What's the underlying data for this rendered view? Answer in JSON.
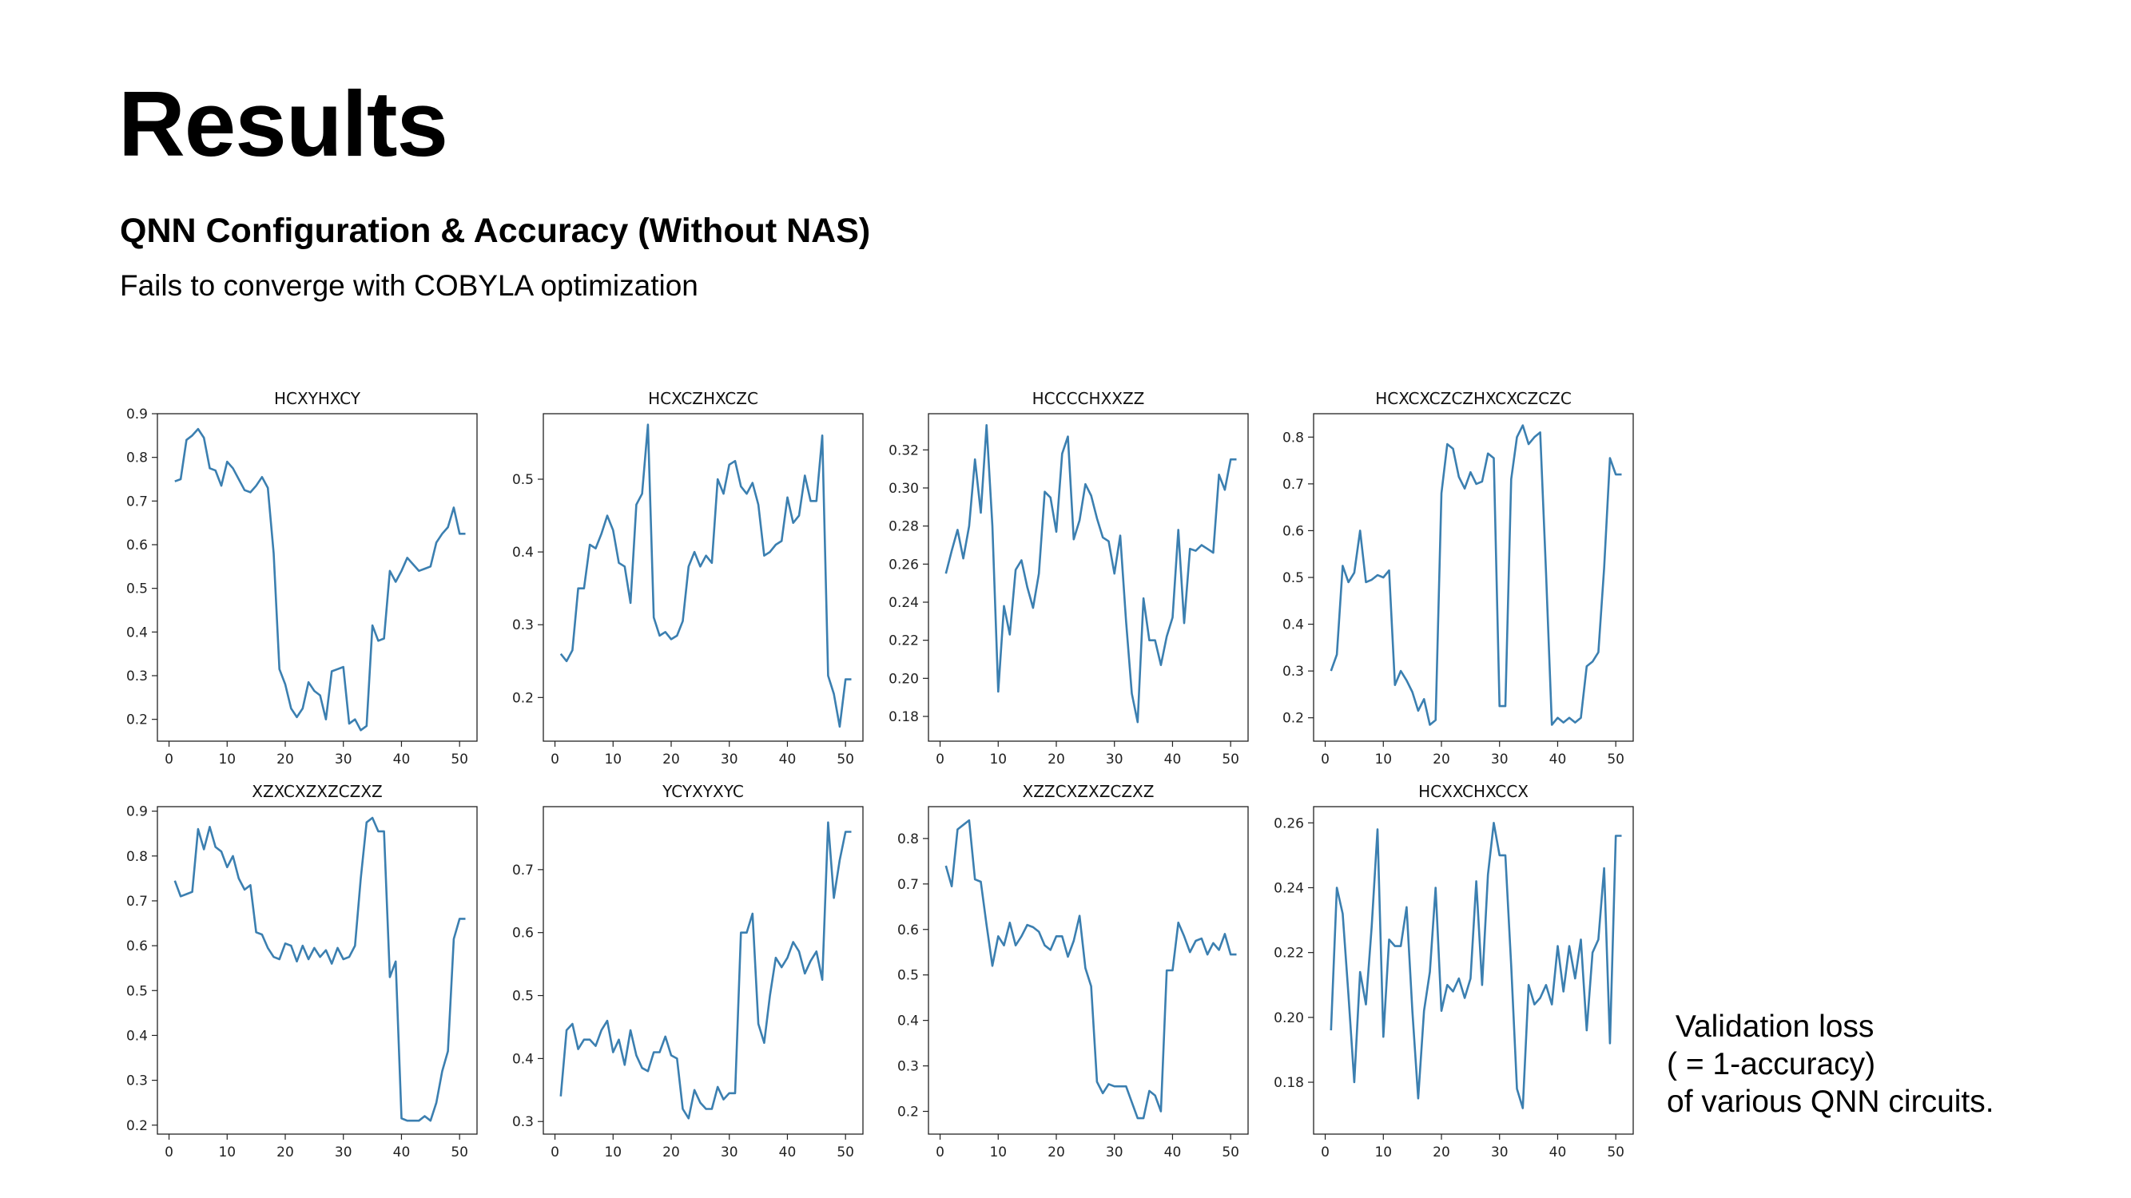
{
  "slide": {
    "title": "Results",
    "subtitle": "QNN Configuration & Accuracy (Without NAS)",
    "description": "Fails to converge with COBYLA optimization",
    "caption_lines": [
      " Validation loss",
      "( = 1-accuracy)",
      "of various QNN circuits."
    ]
  },
  "colors": {
    "line": "#3b7fb0",
    "axis": "#222222"
  },
  "chart_data": [
    {
      "type": "line",
      "title": "HCXYHXCY",
      "xlim": [
        -2,
        53
      ],
      "ylim": [
        0.15,
        0.9
      ],
      "xticks": [
        0,
        10,
        20,
        30,
        40,
        50
      ],
      "yticks": [
        0.2,
        0.3,
        0.4,
        0.5,
        0.6,
        0.7,
        0.8,
        0.9
      ],
      "ytick_labels": [
        "0.2",
        "0.3",
        "0.4",
        "0.5",
        "0.6",
        "0.7",
        "0.8",
        "0.9"
      ],
      "x": [
        1,
        2,
        3,
        4,
        5,
        6,
        7,
        8,
        9,
        10,
        11,
        12,
        13,
        14,
        15,
        16,
        17,
        18,
        19,
        20,
        21,
        22,
        23,
        24,
        25,
        26,
        27,
        28,
        29,
        30,
        31,
        32,
        33,
        34,
        35,
        36,
        37,
        38,
        39,
        40,
        41,
        42,
        43,
        44,
        45,
        46,
        47,
        48,
        49,
        50,
        51
      ],
      "y": [
        0.745,
        0.75,
        0.84,
        0.85,
        0.865,
        0.845,
        0.775,
        0.77,
        0.735,
        0.79,
        0.775,
        0.75,
        0.725,
        0.72,
        0.735,
        0.755,
        0.73,
        0.58,
        0.315,
        0.28,
        0.225,
        0.205,
        0.225,
        0.285,
        0.265,
        0.255,
        0.2,
        0.31,
        0.315,
        0.32,
        0.19,
        0.2,
        0.175,
        0.185,
        0.415,
        0.38,
        0.385,
        0.54,
        0.515,
        0.54,
        0.57,
        0.555,
        0.54,
        0.545,
        0.55,
        0.605,
        0.625,
        0.64,
        0.685,
        0.625,
        0.625
      ]
    },
    {
      "type": "line",
      "title": "HCXCZHXCZC",
      "xlim": [
        -2,
        53
      ],
      "ylim": [
        0.14,
        0.59
      ],
      "xticks": [
        0,
        10,
        20,
        30,
        40,
        50
      ],
      "yticks": [
        0.2,
        0.3,
        0.4,
        0.5
      ],
      "ytick_labels": [
        "0.2",
        "0.3",
        "0.4",
        "0.5"
      ],
      "x": [
        1,
        2,
        3,
        4,
        5,
        6,
        7,
        8,
        9,
        10,
        11,
        12,
        13,
        14,
        15,
        16,
        17,
        18,
        19,
        20,
        21,
        22,
        23,
        24,
        25,
        26,
        27,
        28,
        29,
        30,
        31,
        32,
        33,
        34,
        35,
        36,
        37,
        38,
        39,
        40,
        41,
        42,
        43,
        44,
        45,
        46,
        47,
        48,
        49,
        50,
        51
      ],
      "y": [
        0.26,
        0.25,
        0.265,
        0.35,
        0.35,
        0.41,
        0.405,
        0.425,
        0.45,
        0.43,
        0.385,
        0.38,
        0.33,
        0.465,
        0.48,
        0.575,
        0.31,
        0.285,
        0.29,
        0.28,
        0.285,
        0.305,
        0.38,
        0.4,
        0.38,
        0.395,
        0.385,
        0.5,
        0.48,
        0.52,
        0.525,
        0.49,
        0.48,
        0.495,
        0.465,
        0.395,
        0.4,
        0.41,
        0.415,
        0.475,
        0.44,
        0.45,
        0.505,
        0.47,
        0.47,
        0.56,
        0.23,
        0.205,
        0.16,
        0.225,
        0.225
      ]
    },
    {
      "type": "line",
      "title": "HCCCCHXXZZ",
      "xlim": [
        -2,
        53
      ],
      "ylim": [
        0.167,
        0.339
      ],
      "xticks": [
        0,
        10,
        20,
        30,
        40,
        50
      ],
      "yticks": [
        0.18,
        0.2,
        0.22,
        0.24,
        0.26,
        0.28,
        0.3,
        0.32
      ],
      "ytick_labels": [
        "0.18",
        "0.20",
        "0.22",
        "0.24",
        "0.26",
        "0.28",
        "0.30",
        "0.32"
      ],
      "x": [
        1,
        2,
        3,
        4,
        5,
        6,
        7,
        8,
        9,
        10,
        11,
        12,
        13,
        14,
        15,
        16,
        17,
        18,
        19,
        20,
        21,
        22,
        23,
        24,
        25,
        26,
        27,
        28,
        29,
        30,
        31,
        32,
        33,
        34,
        35,
        36,
        37,
        38,
        39,
        40,
        41,
        42,
        43,
        44,
        45,
        46,
        47,
        48,
        49,
        50,
        51
      ],
      "y": [
        0.255,
        0.267,
        0.278,
        0.263,
        0.28,
        0.315,
        0.287,
        0.333,
        0.28,
        0.193,
        0.238,
        0.223,
        0.257,
        0.262,
        0.248,
        0.237,
        0.255,
        0.298,
        0.295,
        0.277,
        0.318,
        0.327,
        0.273,
        0.283,
        0.302,
        0.296,
        0.284,
        0.274,
        0.272,
        0.255,
        0.275,
        0.23,
        0.192,
        0.177,
        0.242,
        0.22,
        0.22,
        0.207,
        0.222,
        0.232,
        0.278,
        0.229,
        0.268,
        0.267,
        0.27,
        0.268,
        0.266,
        0.307,
        0.299,
        0.315,
        0.315
      ]
    },
    {
      "type": "line",
      "title": "HCXCXCZCZHXCXCZCZC",
      "xlim": [
        -2,
        53
      ],
      "ylim": [
        0.15,
        0.85
      ],
      "xticks": [
        0,
        10,
        20,
        30,
        40,
        50
      ],
      "yticks": [
        0.2,
        0.3,
        0.4,
        0.5,
        0.6,
        0.7,
        0.8
      ],
      "ytick_labels": [
        "0.2",
        "0.3",
        "0.4",
        "0.5",
        "0.6",
        "0.7",
        "0.8"
      ],
      "x": [
        1,
        2,
        3,
        4,
        5,
        6,
        7,
        8,
        9,
        10,
        11,
        12,
        13,
        14,
        15,
        16,
        17,
        18,
        19,
        20,
        21,
        22,
        23,
        24,
        25,
        26,
        27,
        28,
        29,
        30,
        31,
        32,
        33,
        34,
        35,
        36,
        37,
        38,
        39,
        40,
        41,
        42,
        43,
        44,
        45,
        46,
        47,
        48,
        49,
        50,
        51
      ],
      "y": [
        0.3,
        0.335,
        0.525,
        0.49,
        0.51,
        0.6,
        0.49,
        0.495,
        0.505,
        0.5,
        0.515,
        0.27,
        0.3,
        0.28,
        0.255,
        0.215,
        0.24,
        0.185,
        0.195,
        0.68,
        0.785,
        0.775,
        0.715,
        0.69,
        0.725,
        0.7,
        0.705,
        0.765,
        0.755,
        0.225,
        0.225,
        0.71,
        0.8,
        0.825,
        0.785,
        0.8,
        0.81,
        0.51,
        0.185,
        0.2,
        0.19,
        0.2,
        0.19,
        0.2,
        0.31,
        0.32,
        0.34,
        0.52,
        0.755,
        0.72,
        0.72
      ]
    },
    {
      "type": "line",
      "title": "XZXCXZXZCZXZ",
      "xlim": [
        -2,
        53
      ],
      "ylim": [
        0.18,
        0.91
      ],
      "xticks": [
        0,
        10,
        20,
        30,
        40,
        50
      ],
      "yticks": [
        0.2,
        0.3,
        0.4,
        0.5,
        0.6,
        0.7,
        0.8,
        0.9
      ],
      "ytick_labels": [
        "0.2",
        "0.3",
        "0.4",
        "0.5",
        "0.6",
        "0.7",
        "0.8",
        "0.9"
      ],
      "x": [
        1,
        2,
        3,
        4,
        5,
        6,
        7,
        8,
        9,
        10,
        11,
        12,
        13,
        14,
        15,
        16,
        17,
        18,
        19,
        20,
        21,
        22,
        23,
        24,
        25,
        26,
        27,
        28,
        29,
        30,
        31,
        32,
        33,
        34,
        35,
        36,
        37,
        38,
        39,
        40,
        41,
        42,
        43,
        44,
        45,
        46,
        47,
        48,
        49,
        50,
        51
      ],
      "y": [
        0.745,
        0.71,
        0.715,
        0.72,
        0.86,
        0.815,
        0.865,
        0.82,
        0.81,
        0.775,
        0.8,
        0.75,
        0.725,
        0.735,
        0.63,
        0.625,
        0.595,
        0.575,
        0.57,
        0.605,
        0.6,
        0.565,
        0.6,
        0.57,
        0.595,
        0.575,
        0.59,
        0.56,
        0.595,
        0.57,
        0.575,
        0.6,
        0.75,
        0.875,
        0.885,
        0.855,
        0.855,
        0.53,
        0.565,
        0.215,
        0.21,
        0.21,
        0.21,
        0.22,
        0.21,
        0.25,
        0.32,
        0.365,
        0.615,
        0.66,
        0.66
      ]
    },
    {
      "type": "line",
      "title": "YCYXYXYC",
      "xlim": [
        -2,
        53
      ],
      "ylim": [
        0.28,
        0.8
      ],
      "xticks": [
        0,
        10,
        20,
        30,
        40,
        50
      ],
      "yticks": [
        0.3,
        0.4,
        0.5,
        0.6,
        0.7
      ],
      "ytick_labels": [
        "0.3",
        "0.4",
        "0.5",
        "0.6",
        "0.7"
      ],
      "x": [
        1,
        2,
        3,
        4,
        5,
        6,
        7,
        8,
        9,
        10,
        11,
        12,
        13,
        14,
        15,
        16,
        17,
        18,
        19,
        20,
        21,
        22,
        23,
        24,
        25,
        26,
        27,
        28,
        29,
        30,
        31,
        32,
        33,
        34,
        35,
        36,
        37,
        38,
        39,
        40,
        41,
        42,
        43,
        44,
        45,
        46,
        47,
        48,
        49,
        50,
        51
      ],
      "y": [
        0.34,
        0.445,
        0.455,
        0.415,
        0.43,
        0.43,
        0.42,
        0.445,
        0.46,
        0.41,
        0.43,
        0.39,
        0.445,
        0.405,
        0.385,
        0.38,
        0.41,
        0.41,
        0.435,
        0.405,
        0.4,
        0.32,
        0.305,
        0.35,
        0.33,
        0.32,
        0.32,
        0.355,
        0.335,
        0.345,
        0.345,
        0.6,
        0.6,
        0.63,
        0.455,
        0.425,
        0.5,
        0.56,
        0.545,
        0.56,
        0.585,
        0.57,
        0.535,
        0.555,
        0.57,
        0.525,
        0.775,
        0.655,
        0.715,
        0.76,
        0.76
      ]
    },
    {
      "type": "line",
      "title": "XZZCXZXZCZXZ",
      "xlim": [
        -2,
        53
      ],
      "ylim": [
        0.15,
        0.87
      ],
      "xticks": [
        0,
        10,
        20,
        30,
        40,
        50
      ],
      "yticks": [
        0.2,
        0.3,
        0.4,
        0.5,
        0.6,
        0.7,
        0.8
      ],
      "ytick_labels": [
        "0.2",
        "0.3",
        "0.4",
        "0.5",
        "0.6",
        "0.7",
        "0.8"
      ],
      "x": [
        1,
        2,
        3,
        4,
        5,
        6,
        7,
        8,
        9,
        10,
        11,
        12,
        13,
        14,
        15,
        16,
        17,
        18,
        19,
        20,
        21,
        22,
        23,
        24,
        25,
        26,
        27,
        28,
        29,
        30,
        31,
        32,
        33,
        34,
        35,
        36,
        37,
        38,
        39,
        40,
        41,
        42,
        43,
        44,
        45,
        46,
        47,
        48,
        49,
        50,
        51
      ],
      "y": [
        0.74,
        0.695,
        0.82,
        0.83,
        0.84,
        0.71,
        0.705,
        0.61,
        0.52,
        0.585,
        0.565,
        0.615,
        0.565,
        0.585,
        0.61,
        0.605,
        0.595,
        0.565,
        0.555,
        0.585,
        0.585,
        0.54,
        0.575,
        0.63,
        0.515,
        0.475,
        0.265,
        0.24,
        0.26,
        0.255,
        0.255,
        0.255,
        0.22,
        0.185,
        0.185,
        0.245,
        0.235,
        0.2,
        0.51,
        0.51,
        0.615,
        0.585,
        0.55,
        0.575,
        0.58,
        0.545,
        0.57,
        0.555,
        0.59,
        0.545,
        0.545
      ]
    },
    {
      "type": "line",
      "title": "HCXXCHXCCX",
      "xlim": [
        -2,
        53
      ],
      "ylim": [
        0.164,
        0.265
      ],
      "xticks": [
        0,
        10,
        20,
        30,
        40,
        50
      ],
      "yticks": [
        0.18,
        0.2,
        0.22,
        0.24,
        0.26
      ],
      "ytick_labels": [
        "0.18",
        "0.20",
        "0.22",
        "0.24",
        "0.26"
      ],
      "x": [
        1,
        2,
        3,
        4,
        5,
        6,
        7,
        8,
        9,
        10,
        11,
        12,
        13,
        14,
        15,
        16,
        17,
        18,
        19,
        20,
        21,
        22,
        23,
        24,
        25,
        26,
        27,
        28,
        29,
        30,
        31,
        32,
        33,
        34,
        35,
        36,
        37,
        38,
        39,
        40,
        41,
        42,
        43,
        44,
        45,
        46,
        47,
        48,
        49,
        50,
        51
      ],
      "y": [
        0.196,
        0.24,
        0.232,
        0.207,
        0.18,
        0.214,
        0.204,
        0.228,
        0.258,
        0.194,
        0.224,
        0.222,
        0.222,
        0.234,
        0.202,
        0.175,
        0.202,
        0.214,
        0.24,
        0.202,
        0.21,
        0.208,
        0.212,
        0.206,
        0.212,
        0.242,
        0.21,
        0.244,
        0.26,
        0.25,
        0.25,
        0.216,
        0.178,
        0.172,
        0.21,
        0.204,
        0.206,
        0.21,
        0.204,
        0.222,
        0.208,
        0.222,
        0.212,
        0.224,
        0.196,
        0.22,
        0.224,
        0.246,
        0.192,
        0.256,
        0.256
      ]
    }
  ]
}
